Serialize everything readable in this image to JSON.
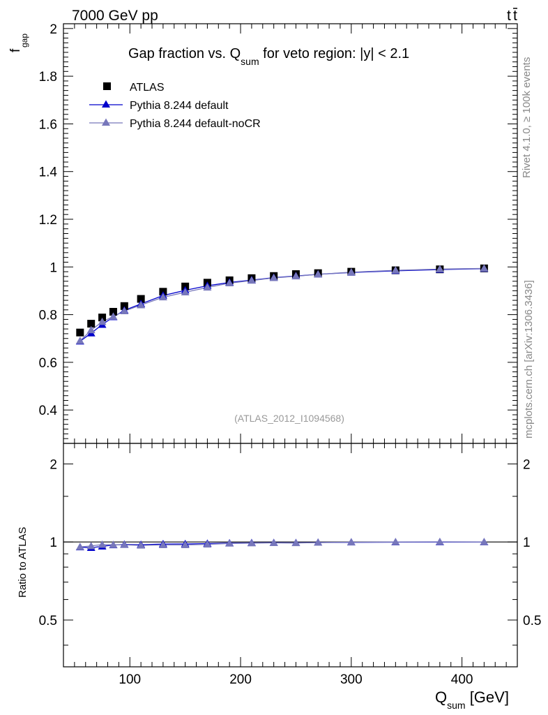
{
  "header": {
    "energy_label": "7000 GeV pp",
    "process_t": "t",
    "process_tbar": "t"
  },
  "side": {
    "rivet_label": "Rivet 4.1.0, ≥ 100k events",
    "mcplots_label": "mcplots.cern.ch [arXiv:1306.3436]"
  },
  "colors": {
    "atlas": "#000000",
    "default": "#0000cc",
    "nocr": "#7777bb",
    "watermark": "#999999",
    "side_text": "#888888"
  },
  "chart_data": [
    {
      "type": "scatter",
      "title_pre": "Gap fraction vs. Q",
      "title_sub": "sum",
      "title_post": " for veto region: |y| < 2.1",
      "ylabel": "f",
      "ylabel_sub": "gap",
      "analysis_label": "(ATLAS_2012_I1094568)",
      "xlim": [
        40,
        450
      ],
      "ylim": [
        0.26,
        2.02
      ],
      "yticks": [
        0.4,
        0.6,
        0.8,
        1,
        1.2,
        1.4,
        1.6,
        1.8,
        2
      ],
      "ytick_labels": [
        "0.4",
        "0.6",
        "0.8",
        "1",
        "1.2",
        "1.4",
        "1.6",
        "1.8",
        "2"
      ],
      "x": [
        55,
        65,
        75,
        85,
        95,
        110,
        130,
        150,
        170,
        190,
        210,
        230,
        250,
        270,
        300,
        340,
        380,
        420
      ],
      "series": [
        {
          "name": "ATLAS",
          "marker": "square",
          "values": [
            0.725,
            0.762,
            0.788,
            0.812,
            0.836,
            0.866,
            0.896,
            0.918,
            0.934,
            0.944,
            0.953,
            0.962,
            0.97,
            0.974,
            0.98,
            0.986,
            0.99,
            0.994
          ]
        },
        {
          "name": "Pythia 8.244 default",
          "marker": "triangle",
          "values": [
            0.688,
            0.722,
            0.758,
            0.79,
            0.818,
            0.845,
            0.88,
            0.902,
            0.921,
            0.935,
            0.945,
            0.955,
            0.962,
            0.969,
            0.977,
            0.984,
            0.989,
            0.993
          ]
        },
        {
          "name": "Pythia 8.244 default-noCR",
          "marker": "triangle",
          "values": [
            0.69,
            0.735,
            0.77,
            0.792,
            0.815,
            0.84,
            0.873,
            0.894,
            0.914,
            0.932,
            0.943,
            0.954,
            0.961,
            0.969,
            0.978,
            0.986,
            0.991,
            0.994
          ]
        }
      ]
    },
    {
      "type": "scatter",
      "ylabel": "Ratio to ATLAS",
      "xlabel": "Q",
      "xlabel_sub": "sum",
      "xlabel_post": " [GeV]",
      "xlim": [
        40,
        450
      ],
      "ylim": [
        0.33,
        2.4
      ],
      "yscale": "log",
      "xticks": [
        100,
        200,
        300,
        400
      ],
      "xtick_labels": [
        "100",
        "200",
        "300",
        "400"
      ],
      "yticks": [
        0.5,
        1,
        2
      ],
      "ytick_labels": [
        "0.5",
        "1",
        "2"
      ],
      "x": [
        55,
        65,
        75,
        85,
        95,
        110,
        130,
        150,
        170,
        190,
        210,
        230,
        250,
        270,
        300,
        340,
        380,
        420
      ],
      "series": [
        {
          "name": "Pythia 8.244 default",
          "marker": "triangle",
          "values": [
            0.955,
            0.95,
            0.962,
            0.973,
            0.978,
            0.976,
            0.982,
            0.983,
            0.986,
            0.99,
            0.992,
            0.993,
            0.992,
            0.995,
            0.997,
            0.998,
            0.999,
            0.999
          ]
        },
        {
          "name": "Pythia 8.244 default-noCR",
          "marker": "triangle",
          "values": [
            0.957,
            0.965,
            0.977,
            0.975,
            0.975,
            0.97,
            0.974,
            0.974,
            0.979,
            0.987,
            0.99,
            0.992,
            0.991,
            0.995,
            0.998,
            1.0,
            1.001,
            1.0
          ]
        }
      ]
    }
  ]
}
